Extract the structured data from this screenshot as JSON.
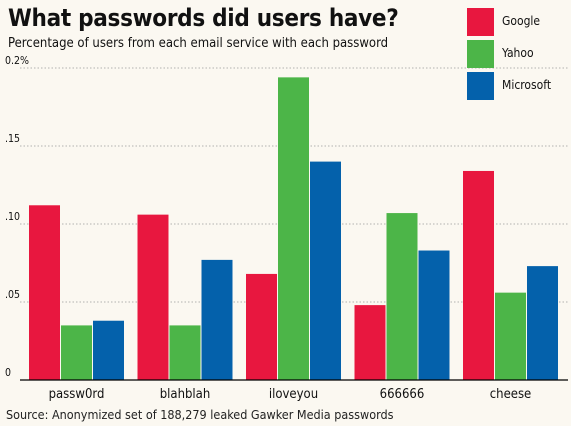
{
  "title": "What passwords did users have?",
  "subtitle": "Percentage of users from each email service with each password",
  "source": "Source: Anonymized set of 188,279 leaked Gawker Media passwords",
  "chart_data": {
    "type": "bar",
    "title": "What passwords did users have?",
    "subtitle": "Percentage of users from each email service with each password",
    "xlabel": "",
    "ylabel": "",
    "categories": [
      "passw0rd",
      "blahblah",
      "iloveyou",
      "666666",
      "cheese"
    ],
    "series": [
      {
        "name": "Google",
        "color": "#e8173f",
        "values": [
          0.112,
          0.106,
          0.068,
          0.048,
          0.134
        ]
      },
      {
        "name": "Yahoo",
        "color": "#4cb548",
        "values": [
          0.035,
          0.035,
          0.194,
          0.107,
          0.056
        ]
      },
      {
        "name": "Microsoft",
        "color": "#0461ab",
        "values": [
          0.038,
          0.077,
          0.14,
          0.083,
          0.073
        ]
      }
    ],
    "ylim": [
      0,
      0.2
    ],
    "yticks": [
      {
        "value": 0,
        "label": "0"
      },
      {
        "value": 0.05,
        "label": ".05"
      },
      {
        "value": 0.1,
        "label": ".10"
      },
      {
        "value": 0.15,
        "label": ".15"
      },
      {
        "value": 0.2,
        "label": "0.2%"
      }
    ],
    "grid": true,
    "legend_position": "top-right"
  }
}
